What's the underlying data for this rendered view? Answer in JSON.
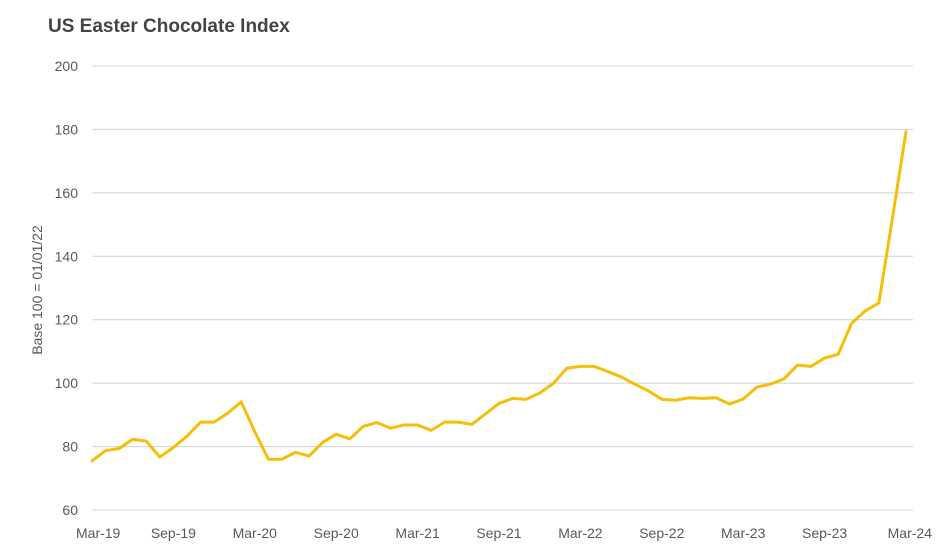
{
  "chart_data": {
    "type": "line",
    "title": "US Easter Chocolate Index",
    "ylabel": "Base 100 = 01/01/22",
    "xlabel": "",
    "ylim": [
      60,
      200
    ],
    "yticks": [
      60,
      80,
      100,
      120,
      140,
      160,
      180,
      200
    ],
    "x_tick_labels": [
      "Mar-19",
      "Sep-19",
      "Mar-20",
      "Sep-20",
      "Mar-21",
      "Sep-21",
      "Mar-22",
      "Sep-22",
      "Mar-23",
      "Sep-23",
      "Mar-24"
    ],
    "x_start": "2019-03",
    "grid": true,
    "line_color": "#F5BE0B",
    "series": [
      {
        "x": [
          "2019-03",
          "2019-04",
          "2019-05",
          "2019-06",
          "2019-07",
          "2019-08",
          "2019-09",
          "2019-10",
          "2019-11",
          "2019-12",
          "2020-01",
          "2020-02",
          "2020-03",
          "2020-04",
          "2020-05",
          "2020-06",
          "2020-07",
          "2020-08",
          "2020-09",
          "2020-10",
          "2020-11",
          "2020-12",
          "2021-01",
          "2021-02",
          "2021-03",
          "2021-04",
          "2021-05",
          "2021-06",
          "2021-07",
          "2021-08",
          "2021-09",
          "2021-10",
          "2021-11",
          "2021-12",
          "2022-01",
          "2022-02",
          "2022-03",
          "2022-04",
          "2022-05",
          "2022-06",
          "2022-07",
          "2022-08",
          "2022-09",
          "2022-10",
          "2022-11",
          "2022-12",
          "2023-01",
          "2023-02",
          "2023-03",
          "2023-04",
          "2023-05",
          "2023-06",
          "2023-07",
          "2023-08",
          "2023-09",
          "2023-10",
          "2023-11",
          "2023-12",
          "2024-01",
          "2024-02",
          "2024-03"
        ],
        "values": [
          75.5,
          78.7,
          79.4,
          82.3,
          81.7,
          76.7,
          79.7,
          83.3,
          87.7,
          87.7,
          90.5,
          94.1,
          84.7,
          76.0,
          76.0,
          78.2,
          77.0,
          81.3,
          83.9,
          82.4,
          86.4,
          87.6,
          85.8,
          86.8,
          86.8,
          85.1,
          87.7,
          87.7,
          87.0,
          90.3,
          93.6,
          95.2,
          94.9,
          96.9,
          99.9,
          104.7,
          105.3,
          105.3,
          103.7,
          102.0,
          99.7,
          97.6,
          94.9,
          94.6,
          95.4,
          95.2,
          95.4,
          93.4,
          95.0,
          98.7,
          99.7,
          101.3,
          105.7,
          105.3,
          107.9,
          109.1,
          118.9,
          122.8,
          125.3,
          152.0,
          179.3
        ]
      }
    ]
  }
}
